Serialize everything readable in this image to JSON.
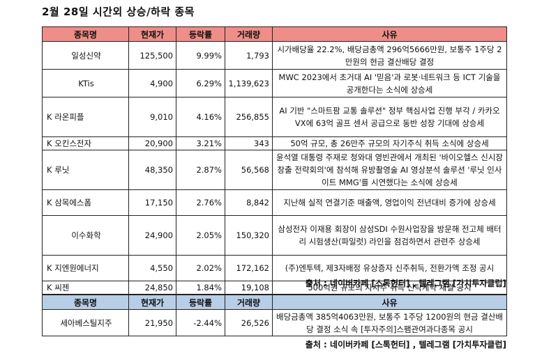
{
  "title": "2월 28일  시간외 상승/하락 종목",
  "headers": {
    "name": "종목명",
    "price": "현재가",
    "change": "등락률",
    "volume": "거래량",
    "reason": "사유"
  },
  "rows": [
    {
      "name": "일성신약",
      "price": "125,500",
      "change": "9.99%",
      "volume": "1,793",
      "reason": "시가배당율 22.2%, 배당금총액 296억5666만원, 보통주 1주당 2만원의 현금 결산배당 결정"
    },
    {
      "name": "KTis",
      "price": "4,900",
      "change": "6.29%",
      "volume": "1,139,623",
      "reason": "MWC 2023에서 초거대 AI '믿음'과 로봇·네트워크 등 ICT 기술을 공개한다는 소식에 상승세"
    },
    {
      "name": "K 라온피플",
      "price": "9,010",
      "change": "4.16%",
      "volume": "256,855",
      "reason": "AI 기반 \"스마트팜 교통 솔루션\" 정부 핵심사업 진행 부각 / 카카오VX에 63억 골프 센서 공급으로 동반 성장 기대에 상승세"
    },
    {
      "name": "K 오킨스전자",
      "price": "20,900",
      "change": "3.21%",
      "volume": "343",
      "reason": "50억 규모, 총 26만주 규모의 자기주식 취득 소식에 상승세"
    },
    {
      "name": "K 루닛",
      "price": "48,350",
      "change": "2.87%",
      "volume": "56,568",
      "reason": "윤석열 대통령 주재로 청와대 영빈관에서 개최된 '바이오헬스 신시장 창출 전략회의'에 참석해 유방촬영술 AI 영상분석 솔루션 '루닛 인사이트 MMG'를 시연했다는 소식에 상승세"
    },
    {
      "name": "K 삼목에스폼",
      "price": "17,150",
      "change": "2.76%",
      "volume": "8,842",
      "reason": "지난해 실적 연결기준 매출액, 영업이익 전년대비 증가에 상승세"
    },
    {
      "name": "이수화학",
      "price": "24,900",
      "change": "2.05%",
      "volume": "150,320",
      "reason": "삼성전자 이재용 회장이 삼성SDI 수원사업장을 방문해 전고체 배터리 시험생산(파일럿) 라인을 점검하면서 관련주 상승세"
    },
    {
      "name": "K 지엔원에너지",
      "price": "4,550",
      "change": "2.02%",
      "volume": "172,162",
      "reason": "(주)엔투텍, 제3자배정 유상증자 신주취득, 전환가액 조정 공시"
    },
    {
      "name": "K 씨젠",
      "price": "24,850",
      "change": "1.84%",
      "volume": "19,108",
      "reason": "500억원 규모의 자사주 취득 신탁계약 체결 공시"
    }
  ],
  "source1": "출처 : 네이버카페 [스톡헌터] , 텔레그램 [가치투자클럽]",
  "table2": {
    "rows": [
      {
        "name": "세아베스틸지주",
        "price": "21,950",
        "change": "-2.44%",
        "volume": "26,526",
        "reason": "배당금총액 385억4063만원, 보통주 1주당 1200원의 현금 결산배당 결정 소식 속 [투자주의]스팸관여과다종목 공시"
      }
    ]
  },
  "source2": "출처 : 네이버카페 [스톡헌터] , 텔레그램 [가치투자클럽]"
}
